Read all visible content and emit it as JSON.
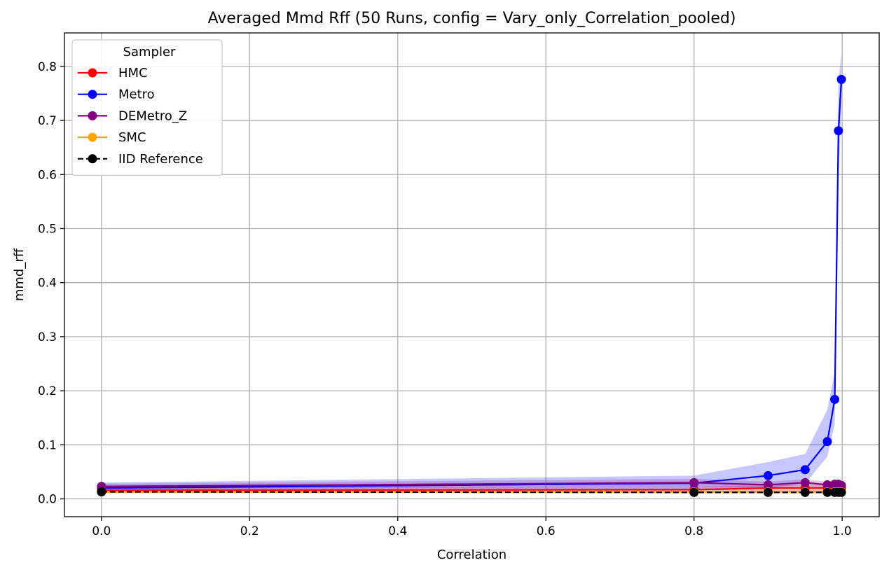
{
  "chart_data": {
    "type": "line",
    "title": "Averaged Mmd Rff (50 Runs, config = Vary_only_Correlation_pooled)",
    "xlabel": "Correlation",
    "ylabel": "mmd_rff",
    "xlim": [
      -0.05,
      1.05
    ],
    "ylim": [
      -0.033,
      0.862
    ],
    "x_ticks": [
      0.0,
      0.2,
      0.4,
      0.6,
      0.8,
      1.0
    ],
    "x_tick_labels": [
      "0.0",
      "0.2",
      "0.4",
      "0.6",
      "0.8",
      "1.0"
    ],
    "y_ticks": [
      0.0,
      0.1,
      0.2,
      0.3,
      0.4,
      0.5,
      0.6,
      0.7,
      0.8
    ],
    "y_tick_labels": [
      "0.0",
      "0.1",
      "0.2",
      "0.3",
      "0.4",
      "0.5",
      "0.6",
      "0.7",
      "0.8"
    ],
    "grid": true,
    "legend": {
      "title": "Sampler",
      "placement": "top-left"
    },
    "x": [
      0.0,
      0.8,
      0.9,
      0.95,
      0.98,
      0.99,
      0.995,
      0.999
    ],
    "series": [
      {
        "name": "HMC",
        "color": "#ff0000",
        "linestyle": "solid",
        "values": [
          0.016,
          0.017,
          0.02,
          0.02,
          0.02,
          0.02,
          0.02,
          0.02
        ],
        "band_low": [
          0.011,
          0.012,
          0.014,
          0.014,
          0.014,
          0.014,
          0.014,
          0.014
        ],
        "band_high": [
          0.021,
          0.022,
          0.026,
          0.026,
          0.026,
          0.026,
          0.026,
          0.026
        ]
      },
      {
        "name": "Metro",
        "color": "#0000ff",
        "linestyle": "solid",
        "values": [
          0.02,
          0.029,
          0.043,
          0.054,
          0.106,
          0.184,
          0.681,
          0.776
        ],
        "band_low": [
          0.012,
          0.016,
          0.02,
          0.028,
          0.078,
          0.138,
          0.59,
          0.72
        ],
        "band_high": [
          0.03,
          0.043,
          0.068,
          0.083,
          0.165,
          0.235,
          0.77,
          0.825
        ]
      },
      {
        "name": "DEMetro_Z",
        "color": "#800080",
        "linestyle": "solid",
        "values": [
          0.023,
          0.03,
          0.026,
          0.03,
          0.026,
          0.027,
          0.027,
          0.025
        ],
        "band_low": [
          0.018,
          0.022,
          0.02,
          0.022,
          0.02,
          0.02,
          0.02,
          0.019
        ],
        "band_high": [
          0.028,
          0.037,
          0.032,
          0.036,
          0.032,
          0.035,
          0.034,
          0.031
        ]
      },
      {
        "name": "SMC",
        "color": "#ffa500",
        "linestyle": "solid",
        "values": [
          0.013,
          0.013,
          0.013,
          0.013,
          0.013,
          0.013,
          0.013,
          0.013
        ],
        "band_low": [
          0.009,
          0.009,
          0.009,
          0.009,
          0.009,
          0.009,
          0.009,
          0.009
        ],
        "band_high": [
          0.017,
          0.017,
          0.017,
          0.017,
          0.017,
          0.017,
          0.017,
          0.017
        ]
      },
      {
        "name": "IID Reference",
        "color": "#000000",
        "linestyle": "dashed",
        "values": [
          0.013,
          0.012,
          0.012,
          0.012,
          0.012,
          0.012,
          0.012,
          0.012
        ]
      }
    ]
  }
}
